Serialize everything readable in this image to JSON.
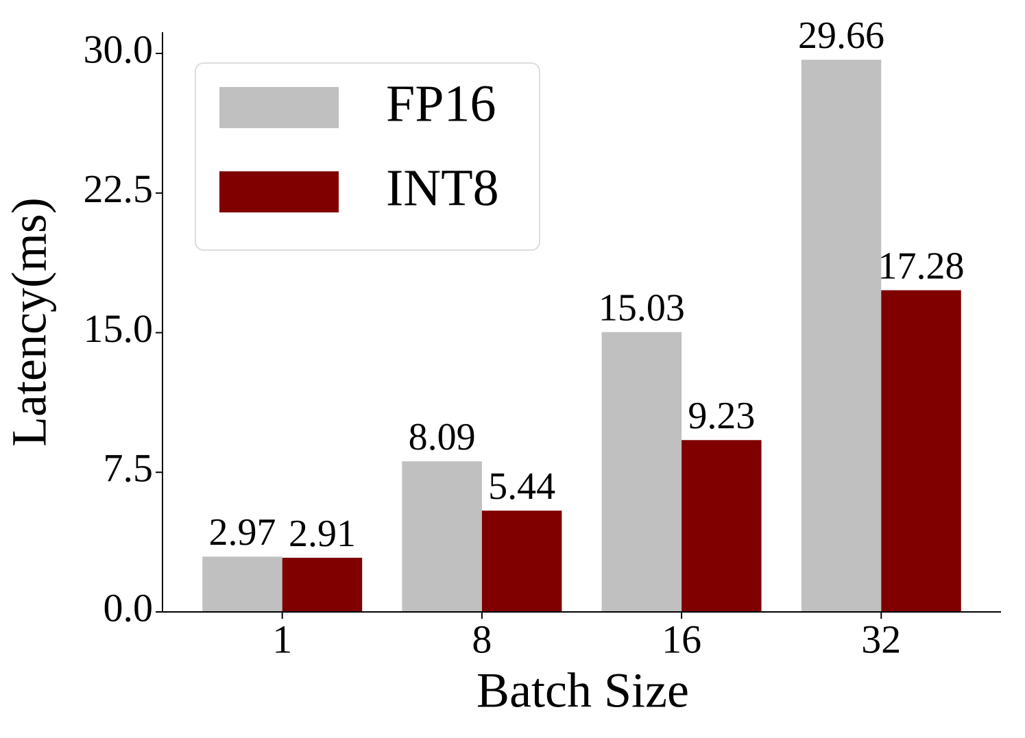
{
  "chart_data": {
    "type": "bar",
    "x_label": "Batch Size",
    "y_label": "Latency(ms)",
    "categories": [
      "1",
      "8",
      "16",
      "32"
    ],
    "series": [
      {
        "name": "FP16",
        "color": "#c0c0c0",
        "values": [
          2.97,
          8.09,
          15.03,
          29.66
        ]
      },
      {
        "name": "INT8",
        "color": "#800000",
        "values": [
          2.91,
          5.44,
          9.23,
          17.28
        ]
      }
    ],
    "ylim": [
      0,
      31.14
    ],
    "yticks": [
      {
        "value": 0,
        "label": "0.0"
      },
      7.5,
      {
        "value": 15,
        "label": "15.0"
      },
      22.5,
      {
        "value": 30,
        "label": "30.0"
      }
    ],
    "legend": "upper left",
    "grid": false
  }
}
